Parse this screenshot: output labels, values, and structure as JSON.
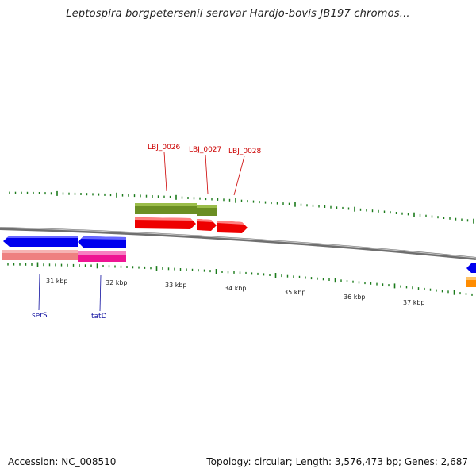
{
  "title": "Leptospira borgpetersenii serovar Hardjo-bovis JB197 chromos...",
  "footer": {
    "accession": "Accession: NC_008510",
    "summary": "Topology: circular; Length: 3,576,473 bp; Genes: 2,687"
  },
  "scale": {
    "labels": [
      "31 kbp",
      "32 kbp",
      "33 kbp",
      "34 kbp",
      "35 kbp",
      "36 kbp",
      "37 kbp"
    ]
  },
  "genes": {
    "top": [
      "LBJ_0026",
      "LBJ_0027",
      "LBJ_0028"
    ],
    "bottom": [
      "serS",
      "tatD"
    ]
  },
  "colors": {
    "backbone": "#7a7a7a",
    "tick": "#1a7a1a",
    "cds_green": "#6b8e23",
    "cds_red": "#ee0000",
    "cds_blue": "#0000ee",
    "cds_pink": "#ee8080",
    "cds_magenta": "#ee1493",
    "cds_orange": "#ff8c00",
    "label_red": "#cc0000",
    "label_blue": "#1010a0"
  }
}
